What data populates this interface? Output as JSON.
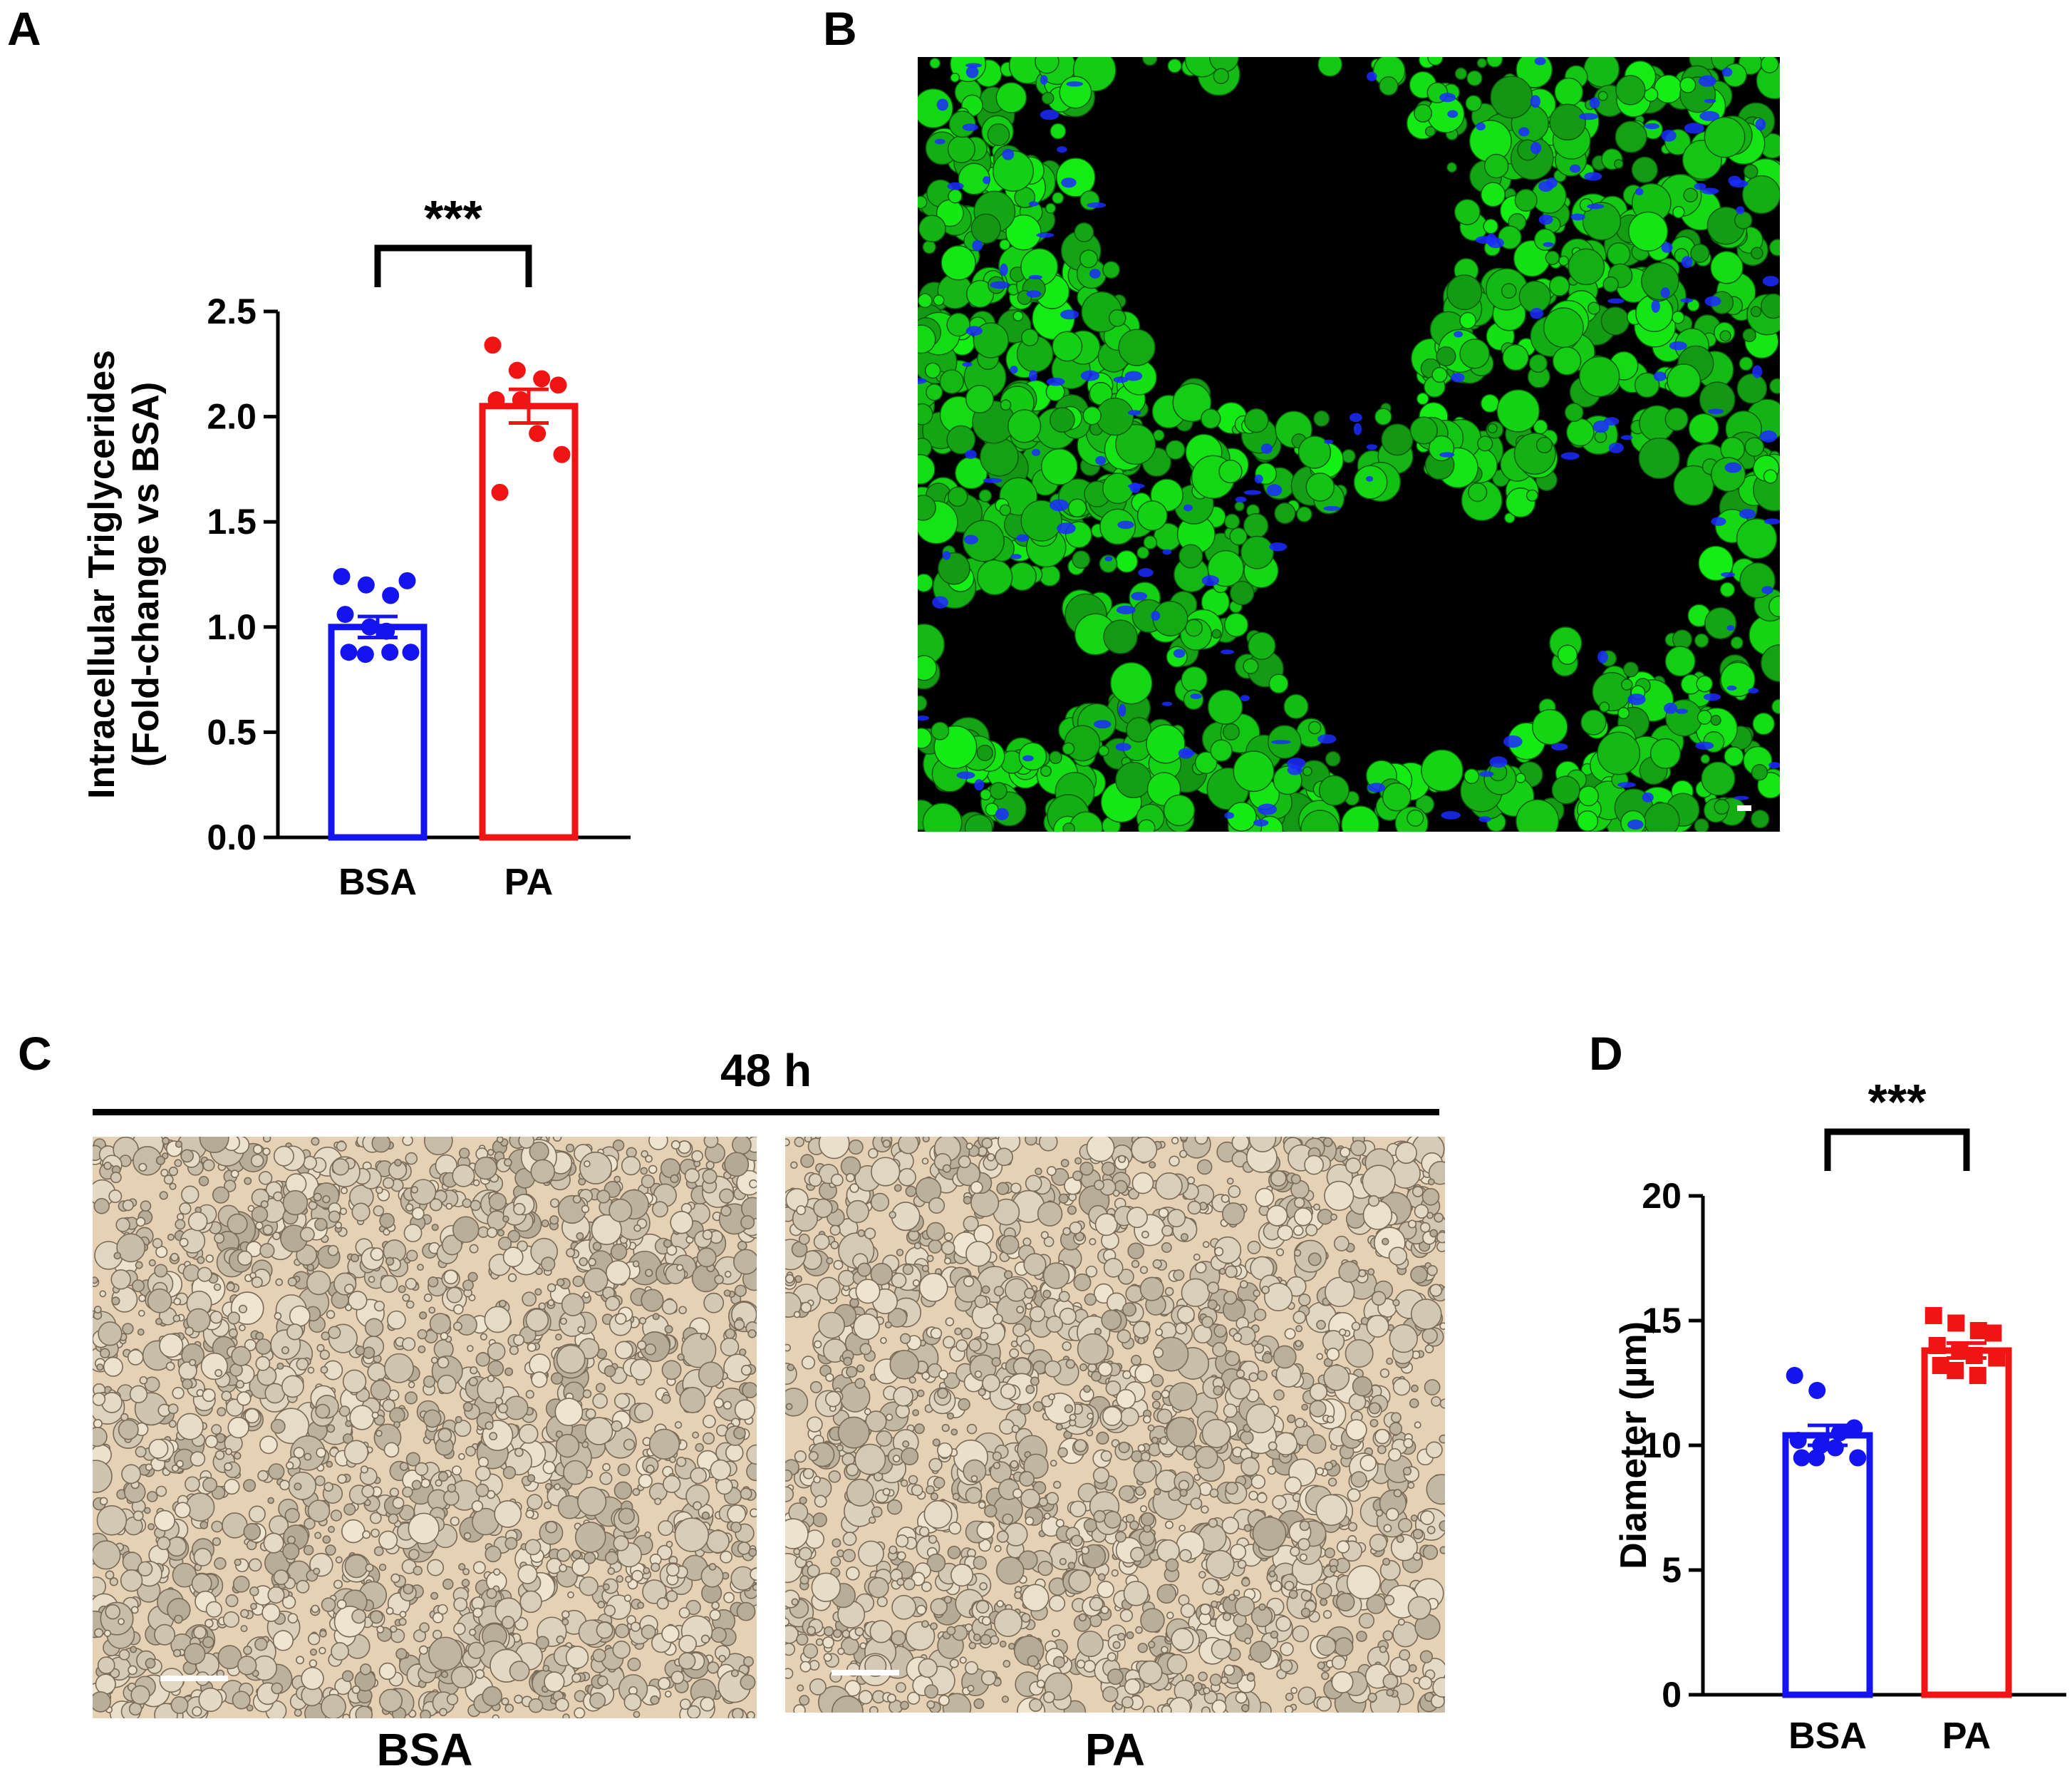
{
  "panels": {
    "a": "A",
    "b": "B",
    "c": "C",
    "d": "D"
  },
  "colors": {
    "bsa": "#1414f0",
    "pa": "#f01414",
    "fluor_green": "#22c522",
    "fluor_blue": "#1b2bff",
    "bf_bg": "#e6d1b5",
    "bf_drop": "#7a6a58"
  },
  "chart_data": [
    {
      "panel": "A",
      "type": "bar",
      "categories": [
        "BSA",
        "PA"
      ],
      "values": [
        1.0,
        2.05
      ],
      "errors": [
        0.05,
        0.08
      ],
      "points": [
        [
          1.24,
          1.2,
          1.15,
          1.22,
          1.06,
          1.0,
          0.98,
          0.88,
          0.88,
          0.87,
          0.88
        ],
        [
          2.34,
          2.22,
          2.18,
          2.15,
          2.08,
          2.08,
          1.92,
          1.82,
          1.64
        ]
      ],
      "ylabel_line1": "Intracellular Triglycerides",
      "ylabel_line2": "(Fold-change vs BSA)",
      "ylim": [
        0,
        2.5
      ],
      "yticks": [
        "0.0",
        "0.5",
        "1.0",
        "1.5",
        "2.0",
        "2.5"
      ],
      "significance": "***"
    },
    {
      "panel": "D",
      "type": "bar",
      "categories": [
        "BSA",
        "PA"
      ],
      "values": [
        10.4,
        13.8
      ],
      "errors": [
        0.4,
        0.3
      ],
      "points": [
        [
          12.8,
          12.2,
          10.5,
          10.7,
          10.2,
          10.0,
          9.9,
          9.5,
          9.5,
          9.5
        ],
        [
          15.2,
          14.9,
          14.6,
          14.5,
          14.0,
          13.8,
          13.6,
          13.5,
          13.2,
          13.0,
          12.8
        ]
      ],
      "ylabel": "Diameter (µm)",
      "ylim": [
        0,
        20
      ],
      "yticks": [
        "0",
        "5",
        "10",
        "15",
        "20"
      ],
      "significance": "***"
    }
  ],
  "panel_c": {
    "timepoint": "48 h",
    "labels": [
      "BSA",
      "PA"
    ]
  }
}
